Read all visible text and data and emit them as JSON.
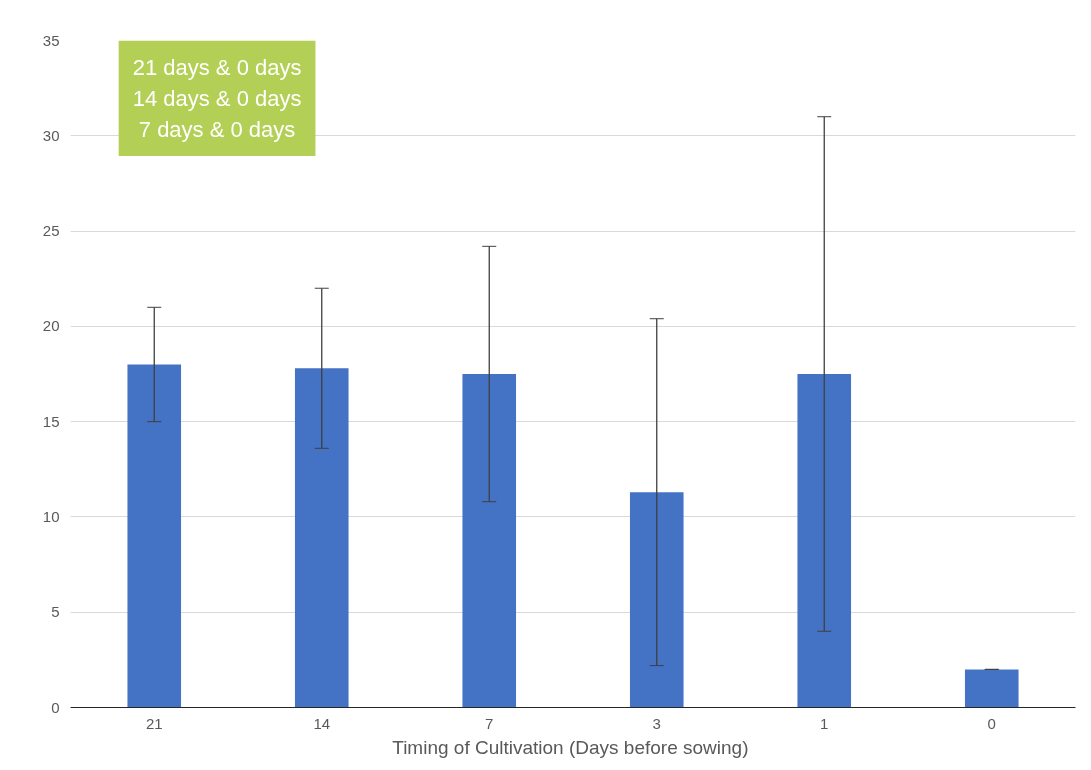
{
  "chart_data": {
    "type": "bar",
    "categories": [
      "21",
      "14",
      "7",
      "3",
      "1",
      "0"
    ],
    "values": [
      18,
      17.8,
      17.5,
      11.3,
      17.5,
      2.0
    ],
    "errors": [
      [
        15,
        21
      ],
      [
        13.6,
        22
      ],
      [
        10.8,
        24.2
      ],
      [
        2.2,
        20.4
      ],
      [
        4,
        31
      ],
      [
        2.0,
        2.0
      ]
    ],
    "color": "#4472c4",
    "xlabel": "Timing of Cultivation  (Days before sowing)",
    "ylim": [
      0,
      35
    ],
    "yticks": [
      0,
      5,
      10,
      15,
      20,
      25,
      30,
      35
    ],
    "grid": "y",
    "annotations": [
      "21 days & 0 days",
      "14 days & 0 days",
      "7 days & 0 days"
    ]
  }
}
